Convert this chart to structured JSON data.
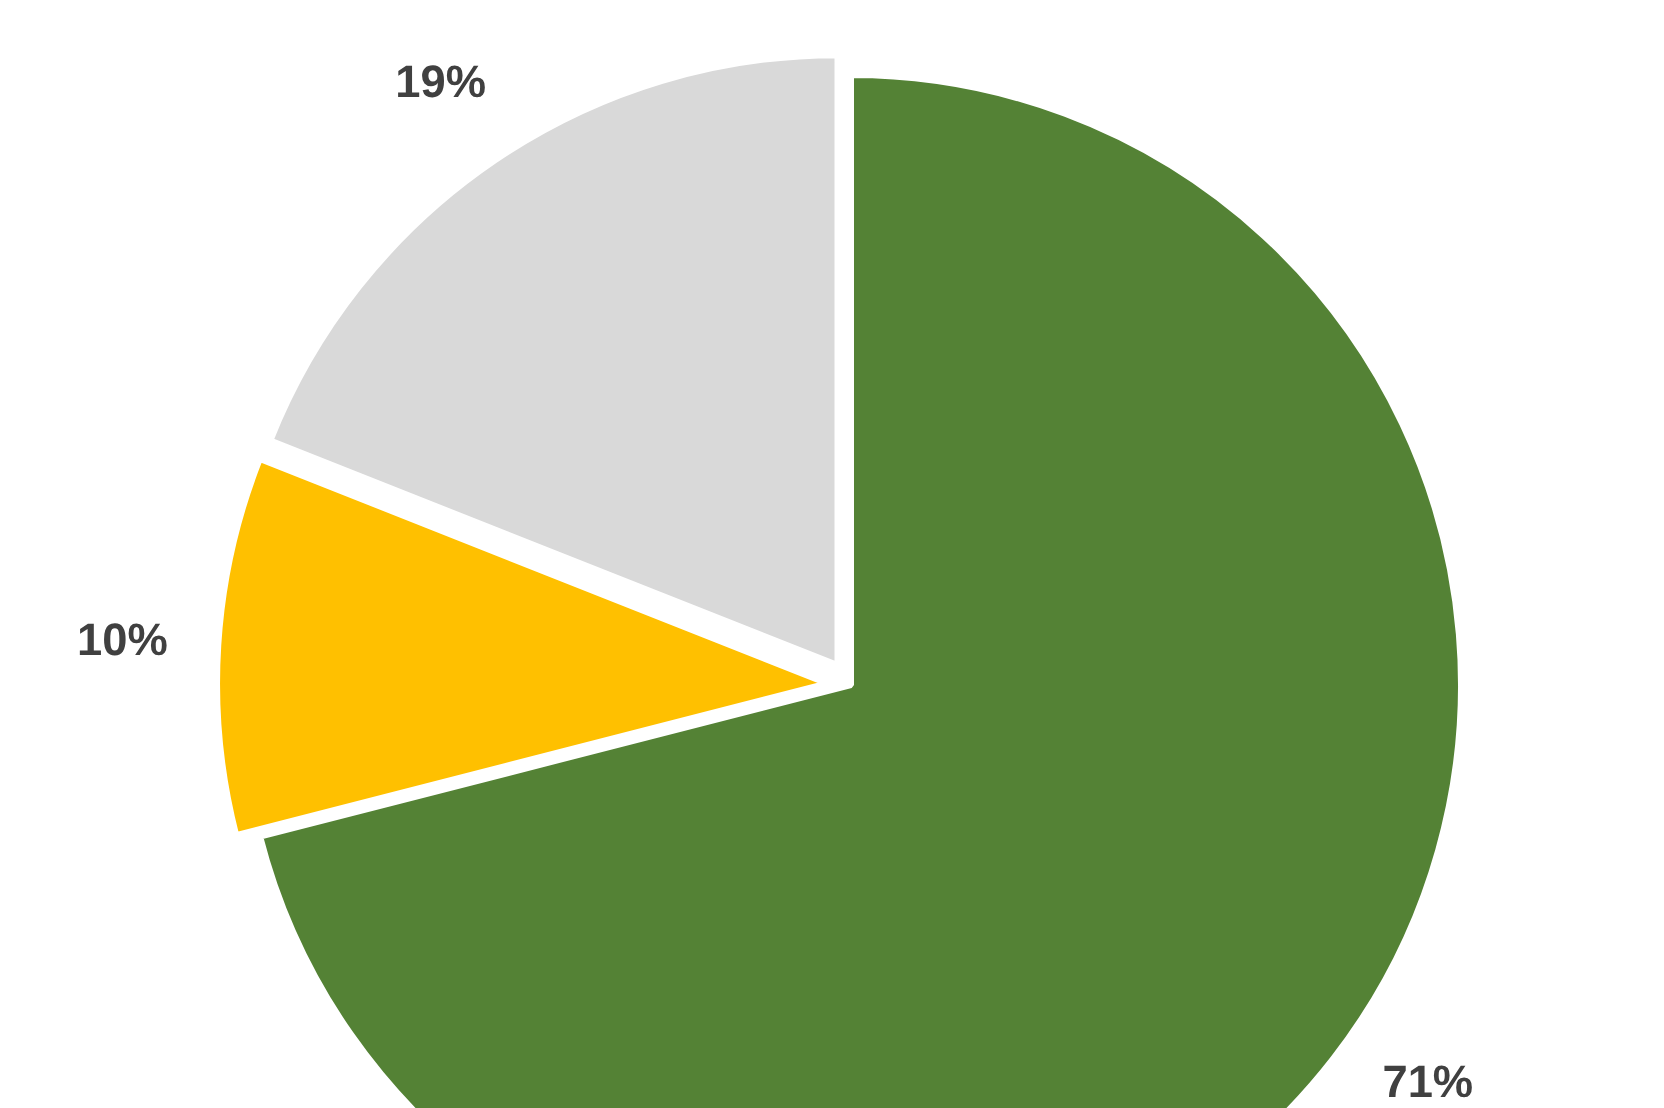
{
  "chart_data": {
    "type": "pie",
    "categories": [
      null,
      null,
      null
    ],
    "values": [
      71,
      10,
      19
    ],
    "colors": [
      "#548235",
      "#ffc000",
      "#d9d9d9"
    ],
    "value_labels": [
      "71%",
      "10%",
      "19%"
    ]
  }
}
